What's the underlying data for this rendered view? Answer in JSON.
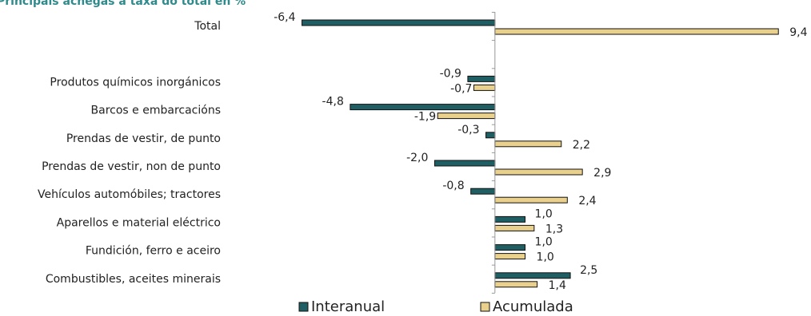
{
  "chart_data": {
    "type": "hbar",
    "title": "Principais achegas á taxa do total en %",
    "categories": [
      "Total",
      null,
      "Produtos químicos inorgánicos",
      "Barcos e embarcacións",
      "Prendas de vestir, de punto",
      "Prendas de vestir, non de punto",
      "Vehículos automóbiles; tractores",
      "Aparellos e material eléctrico",
      "Fundición, ferro e aceiro",
      "Combustibles, aceites minerais"
    ],
    "series": [
      {
        "name": "Interanual",
        "color": "#1f5f63",
        "values": [
          -6.4,
          null,
          -0.9,
          -4.8,
          -0.3,
          -2.0,
          -0.8,
          1.0,
          1.0,
          2.5
        ],
        "value_labels": [
          "-6,4",
          null,
          "-0,9",
          "-4,8",
          "-0,3",
          "-2,0",
          "-0,8",
          "1,0",
          "1,0",
          "2,5"
        ]
      },
      {
        "name": "Acumulada",
        "color": "#e9d08c",
        "values": [
          9.4,
          null,
          -0.7,
          -1.9,
          2.2,
          2.9,
          2.4,
          1.3,
          1.0,
          1.4
        ],
        "value_labels": [
          "9,4",
          null,
          "-0,7",
          "-1,9",
          "2,2",
          "2,9",
          "2,4",
          "1,3",
          "1,0",
          "1,4"
        ]
      }
    ],
    "xlim": [
      -6.6,
      9.5
    ],
    "legend": "bottom"
  }
}
